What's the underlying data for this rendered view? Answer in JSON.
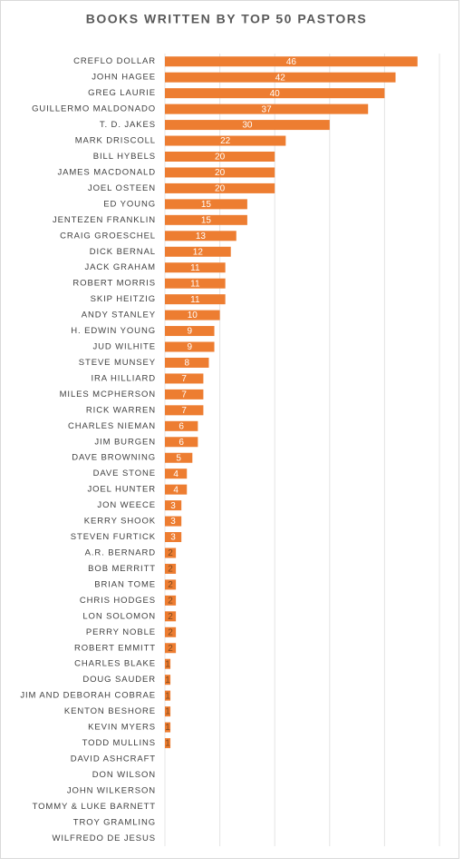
{
  "chart_data": {
    "type": "bar",
    "orientation": "horizontal",
    "title": "BOOKS WRITTEN BY TOP 50 PASTORS",
    "categories": [
      "CREFLO DOLLAR",
      "JOHN HAGEE",
      "GREG LAURIE",
      "GUILLERMO MALDONADO",
      "T. D. JAKES",
      "MARK DRISCOLL",
      "BILL HYBELS",
      "JAMES MACDONALD",
      "JOEL OSTEEN",
      "ED YOUNG",
      "JENTEZEN FRANKLIN",
      "CRAIG GROESCHEL",
      "DICK BERNAL",
      "JACK GRAHAM",
      "ROBERT MORRIS",
      "SKIP HEITZIG",
      "ANDY STANLEY",
      "H. EDWIN YOUNG",
      "JUD WILHITE",
      "STEVE MUNSEY",
      "IRA HILLIARD",
      "MILES MCPHERSON",
      "RICK WARREN",
      "CHARLES NIEMAN",
      "JIM BURGEN",
      "DAVE BROWNING",
      "DAVE STONE",
      "JOEL HUNTER",
      "JON WEECE",
      "KERRY SHOOK",
      "STEVEN FURTICK",
      "A.R. BERNARD",
      "BOB MERRITT",
      "BRIAN TOME",
      "CHRIS HODGES",
      "LON SOLOMON",
      "PERRY NOBLE",
      "ROBERT EMMITT",
      "CHARLES BLAKE",
      "DOUG SAUDER",
      "JIM AND DEBORAH COBRAE",
      "KENTON BESHORE",
      "KEVIN MYERS",
      "TODD MULLINS",
      "DAVID ASHCRAFT",
      "DON WILSON",
      "JOHN WILKERSON",
      "TOMMY & LUKE BARNETT",
      "TROY GRAMLING",
      "WILFREDO DE JESUS"
    ],
    "values": [
      46,
      42,
      40,
      37,
      30,
      22,
      20,
      20,
      20,
      15,
      15,
      13,
      12,
      11,
      11,
      11,
      10,
      9,
      9,
      8,
      7,
      7,
      7,
      6,
      6,
      5,
      4,
      4,
      3,
      3,
      3,
      2,
      2,
      2,
      2,
      2,
      2,
      2,
      1,
      1,
      1,
      1,
      1,
      1,
      0,
      0,
      0,
      0,
      0,
      0
    ],
    "color": "#ed7d31",
    "xlim": [
      0,
      50
    ],
    "xticks": [
      0,
      10,
      20,
      30,
      40,
      50
    ],
    "grid": true,
    "tick_labels": false
  }
}
